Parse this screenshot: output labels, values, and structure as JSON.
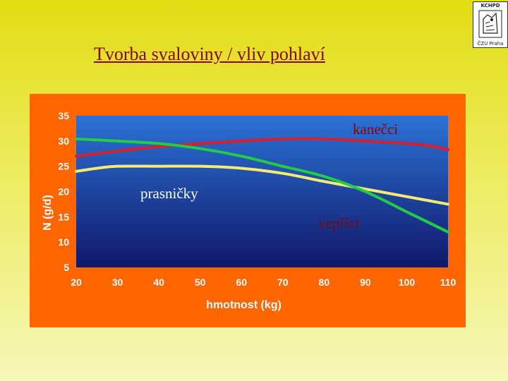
{
  "slide": {
    "title": "Tvorba svaloviny / vliv pohlaví"
  },
  "logo": {
    "top_text": "KCHPD",
    "bottom_text": "ČZU Praha"
  },
  "colors": {
    "background_top": "#e2dc12",
    "chart_panel": "#ff6600",
    "plot_top": "#2c72d6",
    "plot_bottom": "#10186a",
    "title_text": "#8b0000"
  },
  "chart_data": {
    "type": "line",
    "xlabel": "hmotnost (kg)",
    "ylabel": "N (g/d)",
    "xlim": [
      20,
      110
    ],
    "ylim": [
      5,
      35
    ],
    "x_ticks": [
      "20",
      "30",
      "40",
      "50",
      "60",
      "70",
      "80",
      "90",
      "100",
      "110"
    ],
    "y_ticks": [
      "35",
      "30",
      "25",
      "20",
      "15",
      "10",
      "5"
    ],
    "grid": false,
    "legend": "none",
    "series": [
      {
        "name": "kanečci",
        "color": "#d8202a",
        "x": [
          20,
          30,
          40,
          50,
          60,
          70,
          80,
          90,
          100,
          105,
          110
        ],
        "y": [
          27.0,
          28.0,
          28.9,
          29.5,
          30.0,
          30.4,
          30.4,
          30.0,
          29.5,
          29.1,
          28.3
        ]
      },
      {
        "name": "prasničky",
        "color": "#f2ec72",
        "x": [
          20,
          25,
          30,
          40,
          50,
          60,
          70,
          80,
          90,
          100,
          110
        ],
        "y": [
          24.0,
          24.6,
          25.0,
          25.0,
          25.0,
          24.6,
          23.6,
          22.0,
          20.5,
          19.0,
          17.5
        ]
      },
      {
        "name": "vepříci",
        "color": "#22cc44",
        "x": [
          20,
          30,
          40,
          50,
          60,
          70,
          80,
          90,
          100,
          110
        ],
        "y": [
          30.4,
          30.0,
          29.5,
          28.5,
          27.0,
          25.0,
          23.0,
          20.0,
          16.0,
          12.0
        ]
      }
    ]
  }
}
